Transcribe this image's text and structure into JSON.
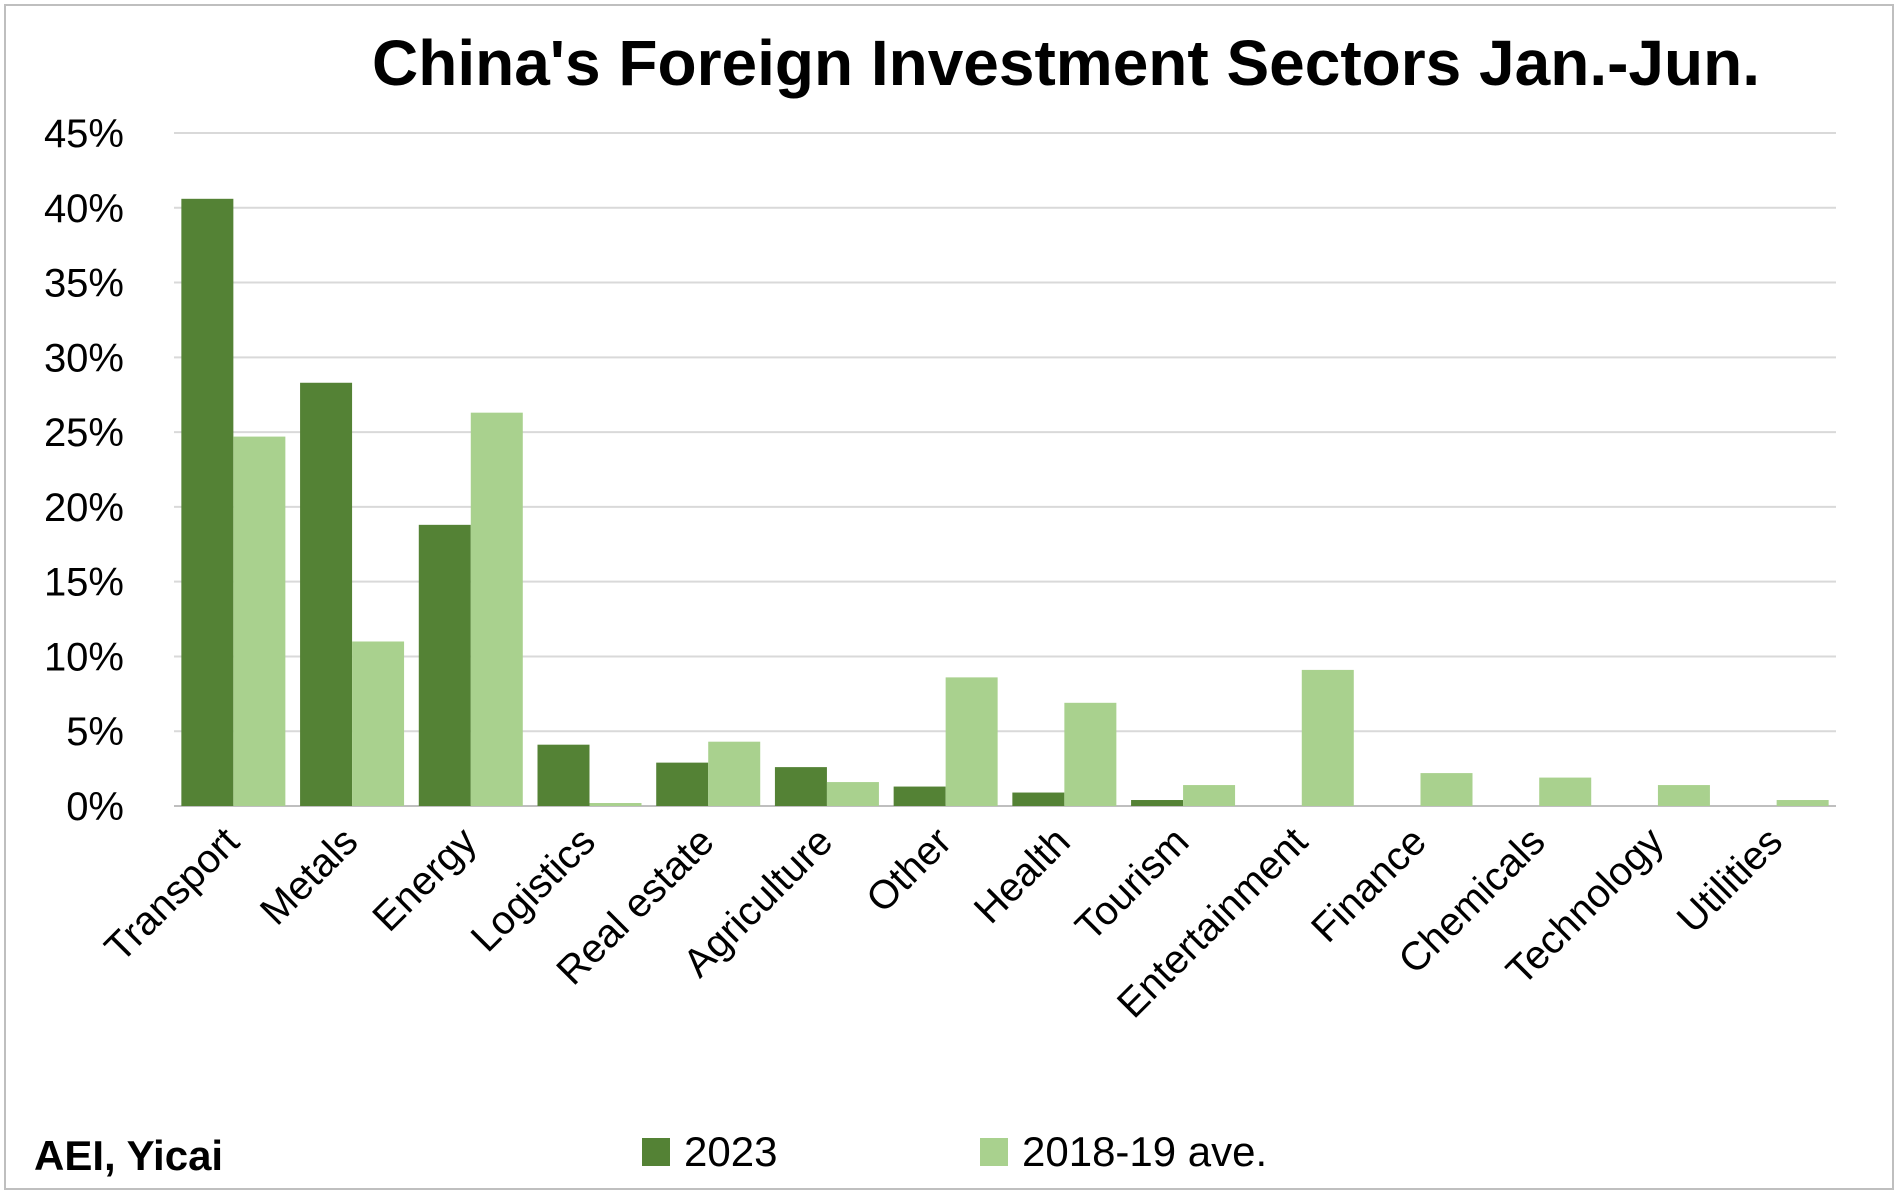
{
  "colors": {
    "series_2023": "#548235",
    "series_2018_19": "#a9d18e",
    "gridline": "#d9d9d9",
    "axis": "#bfbfbf"
  },
  "source": "AEI, Yicai",
  "chart_data": {
    "type": "bar",
    "title": "China's Foreign Investment Sectors Jan.-Jun.",
    "xlabel": "",
    "ylabel": "",
    "ylim": [
      0,
      45
    ],
    "yticks": [
      "0%",
      "5%",
      "10%",
      "15%",
      "20%",
      "25%",
      "30%",
      "35%",
      "40%",
      "45%"
    ],
    "grid": true,
    "legend_position": "bottom",
    "categories": [
      "Transport",
      "Metals",
      "Energy",
      "Logistics",
      "Real estate",
      "Agriculture",
      "Other",
      "Health",
      "Tourism",
      "Entertainment",
      "Finance",
      "Chemicals",
      "Technology",
      "Utilities"
    ],
    "series": [
      {
        "name": "2023",
        "values": [
          40.6,
          28.3,
          18.8,
          4.1,
          2.9,
          2.6,
          1.3,
          0.9,
          0.4,
          0,
          0,
          0,
          0,
          0
        ]
      },
      {
        "name": "2018-19 ave.",
        "values": [
          24.7,
          11.0,
          26.3,
          0.2,
          4.3,
          1.6,
          8.6,
          6.9,
          1.4,
          9.1,
          2.2,
          1.9,
          1.4,
          0.4
        ]
      }
    ]
  }
}
